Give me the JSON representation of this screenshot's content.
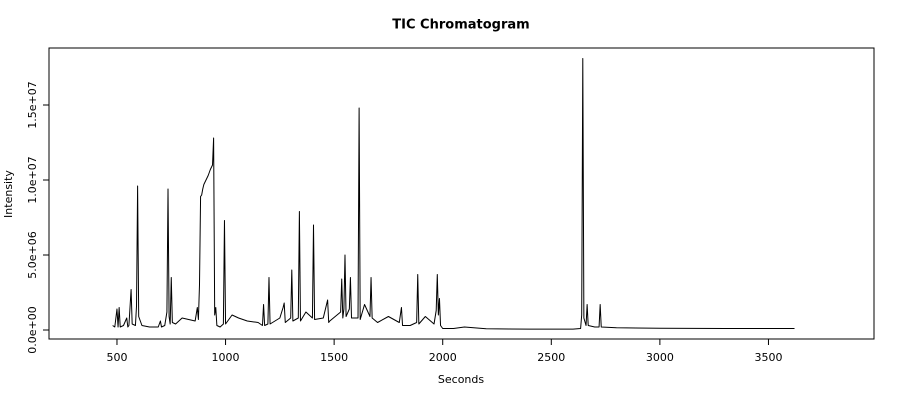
{
  "chart_data": {
    "type": "line",
    "title": "TIC Chromatogram",
    "x_label": "Seconds",
    "y_label": "Intensity",
    "series": [
      {
        "name": "TIC",
        "color": "#000000",
        "x": [
          480,
          490,
          500,
          505,
          510,
          515,
          530,
          545,
          550,
          555,
          560,
          565,
          570,
          585,
          590,
          595,
          600,
          615,
          650,
          690,
          700,
          705,
          720,
          730,
          735,
          740,
          745,
          750,
          755,
          770,
          800,
          830,
          860,
          870,
          875,
          880,
          885,
          890,
          895,
          900,
          910,
          920,
          930,
          940,
          945,
          950,
          955,
          960,
          975,
          990,
          995,
          1000,
          1030,
          1060,
          1100,
          1150,
          1170,
          1175,
          1180,
          1195,
          1200,
          1205,
          1250,
          1265,
          1270,
          1275,
          1300,
          1305,
          1310,
          1335,
          1340,
          1345,
          1370,
          1400,
          1405,
          1410,
          1450,
          1470,
          1475,
          1480,
          1530,
          1535,
          1540,
          1545,
          1550,
          1555,
          1570,
          1575,
          1580,
          1610,
          1615,
          1620,
          1640,
          1665,
          1670,
          1675,
          1700,
          1750,
          1800,
          1810,
          1815,
          1850,
          1880,
          1885,
          1890,
          1920,
          1960,
          1970,
          1975,
          1980,
          1985,
          1990,
          2000,
          2050,
          2100,
          2200,
          2400,
          2600,
          2635,
          2640,
          2645,
          2650,
          2660,
          2665,
          2670,
          2700,
          2720,
          2725,
          2730,
          2800,
          3000,
          3300,
          3620
        ],
        "values": [
          300000,
          200000,
          1400000,
          200000,
          1500000,
          200000,
          300000,
          800000,
          200000,
          300000,
          1500000,
          2700000,
          400000,
          300000,
          1600000,
          9600000,
          900000,
          300000,
          200000,
          200000,
          600000,
          200000,
          300000,
          1200000,
          9400000,
          900000,
          400000,
          3500000,
          500000,
          400000,
          800000,
          700000,
          600000,
          1500000,
          700000,
          3000000,
          8900000,
          9000000,
          9400000,
          9700000,
          10000000,
          10300000,
          10700000,
          11000000,
          12800000,
          1000000,
          1500000,
          300000,
          200000,
          400000,
          7300000,
          400000,
          1000000,
          800000,
          600000,
          500000,
          300000,
          1700000,
          300000,
          400000,
          3500000,
          400000,
          800000,
          1500000,
          1800000,
          500000,
          800000,
          4000000,
          600000,
          800000,
          7900000,
          600000,
          1200000,
          800000,
          7000000,
          700000,
          800000,
          2000000,
          500000,
          600000,
          1200000,
          3400000,
          800000,
          1400000,
          5000000,
          900000,
          1400000,
          3500000,
          800000,
          800000,
          14800000,
          700000,
          1700000,
          900000,
          3500000,
          800000,
          500000,
          900000,
          500000,
          1500000,
          300000,
          300000,
          500000,
          3700000,
          400000,
          900000,
          400000,
          1300000,
          3700000,
          1000000,
          2100000,
          300000,
          100000,
          100000,
          200000,
          80000,
          60000,
          60000,
          100000,
          1000000,
          18100000,
          800000,
          300000,
          1700000,
          300000,
          200000,
          200000,
          1700000,
          200000,
          150000,
          120000,
          100000,
          100000
        ]
      }
    ],
    "xlim": [
      187,
      3986
    ],
    "xticks": [
      500,
      1000,
      1500,
      2000,
      2500,
      3000,
      3500
    ],
    "ylim": [
      -600000,
      18800000
    ],
    "yticks": [
      {
        "value": 0,
        "label": "0.0e+00"
      },
      {
        "value": 5000000,
        "label": "5.0e+06"
      },
      {
        "value": 10000000,
        "label": "1.0e+07"
      },
      {
        "value": 15000000,
        "label": "1.5e+07"
      }
    ],
    "grid": false
  }
}
